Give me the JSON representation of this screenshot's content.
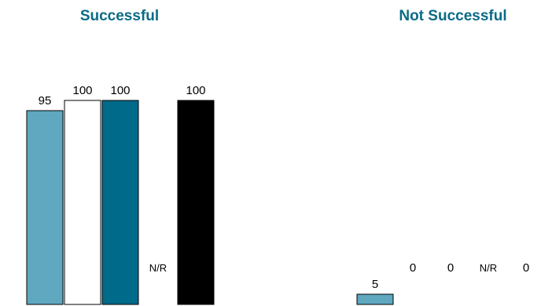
{
  "chart_data": {
    "type": "bar",
    "groups": [
      {
        "title": "Successful",
        "labels": [
          "95",
          "100",
          "100",
          "N/R",
          "100"
        ],
        "values": [
          95,
          100,
          100,
          null,
          100
        ]
      },
      {
        "title": "Not Successful",
        "labels": [
          "5",
          "0",
          "0",
          "N/R",
          "0"
        ],
        "values": [
          5,
          0,
          0,
          null,
          0
        ]
      }
    ],
    "series_colors": [
      "#5fa8c0",
      "#ffffff",
      "#006a8a",
      "#ffffff",
      "#000000"
    ],
    "title_color": "#0a6b86",
    "ylim": [
      0,
      100
    ]
  }
}
